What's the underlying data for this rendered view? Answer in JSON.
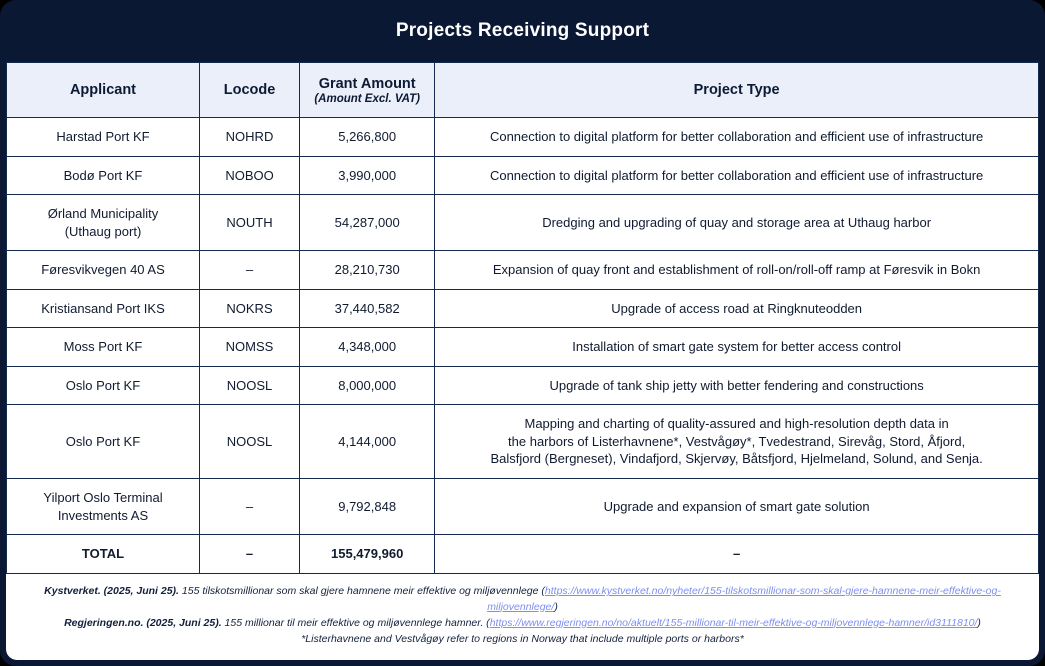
{
  "title": "Projects Receiving Support",
  "colors": {
    "card_navy": "#0a1834",
    "header_row_bg": "#eaeffa",
    "table_border": "#16294e",
    "link_blue": "#7d8ff0",
    "title_text": "#ffffff"
  },
  "table": {
    "headers": {
      "applicant": "Applicant",
      "locode": "Locode",
      "grant": "Grant Amount",
      "grant_sub": "(Amount Excl. VAT)",
      "project": "Project Type"
    },
    "rows": [
      {
        "applicant": "Harstad Port KF",
        "locode": "NOHRD",
        "amount": "5,266,800",
        "project": "Connection to digital platform for better collaboration and efficient use of infrastructure",
        "is_total": false
      },
      {
        "applicant": "Bodø Port KF",
        "locode": "NOBOO",
        "amount": "3,990,000",
        "project": "Connection to digital platform for better collaboration and efficient use of infrastructure",
        "is_total": false
      },
      {
        "applicant": "Ørland Municipality\n(Uthaug port)",
        "locode": "NOUTH",
        "amount": "54,287,000",
        "project": "Dredging and upgrading of quay and storage area at Uthaug harbor",
        "is_total": false
      },
      {
        "applicant": "Føresvikvegen 40 AS",
        "locode": "–",
        "amount": "28,210,730",
        "project": "Expansion of quay front and establishment of roll-on/roll-off ramp at Føresvik in Bokn",
        "is_total": false
      },
      {
        "applicant": "Kristiansand Port IKS",
        "locode": "NOKRS",
        "amount": "37,440,582",
        "project": "Upgrade of access road at Ringknuteodden",
        "is_total": false
      },
      {
        "applicant": "Moss Port KF",
        "locode": "NOMSS",
        "amount": "4,348,000",
        "project": "Installation of smart gate system for better access control",
        "is_total": false
      },
      {
        "applicant": "Oslo Port KF",
        "locode": "NOOSL",
        "amount": "8,000,000",
        "project": "Upgrade of tank ship jetty with better fendering and constructions",
        "is_total": false
      },
      {
        "applicant": "Oslo Port KF",
        "locode": "NOOSL",
        "amount": "4,144,000",
        "project": "Mapping and charting of quality-assured and high-resolution depth data in\nthe harbors of Listerhavnene*, Vestvågøy*, Tvedestrand, Sirevåg, Stord, Åfjord,\nBalsfjord (Bergneset), Vindafjord, Skjervøy, Båtsfjord, Hjelmeland, Solund, and Senja.",
        "is_total": false
      },
      {
        "applicant": "Yilport Oslo Terminal\nInvestments AS",
        "locode": "–",
        "amount": "9,792,848",
        "project": "Upgrade and expansion of smart gate solution",
        "is_total": false
      },
      {
        "applicant": "TOTAL",
        "locode": "–",
        "amount": "155,479,960",
        "project": "–",
        "is_total": true
      }
    ]
  },
  "footer": {
    "lines": [
      {
        "source": "Kystverket. (2025, Juni 25).",
        "text": "155 tilskotsmillionar som skal gjere hamnene meir effektive og miljøvennlege (",
        "link": "https://www.kystverket.no/nyheter/155-tilskotsmillionar-som-skal-gjere-hamnene-meir-effektive-og-miljovennlege/",
        "suffix": ")"
      },
      {
        "source": "Regjeringen.no. (2025, Juni 25).",
        "text": "155 millionar til meir effektive og miljøvennlege hamner. (",
        "link": "https://www.regjeringen.no/no/aktuelt/155-millionar-til-meir-effektive-og-miljovennlege-hamner/id3111810/",
        "suffix": ")"
      },
      {
        "note": "*Listerhavnene and Vestvågøy refer to regions in Norway that include multiple ports or harbors*"
      }
    ]
  }
}
